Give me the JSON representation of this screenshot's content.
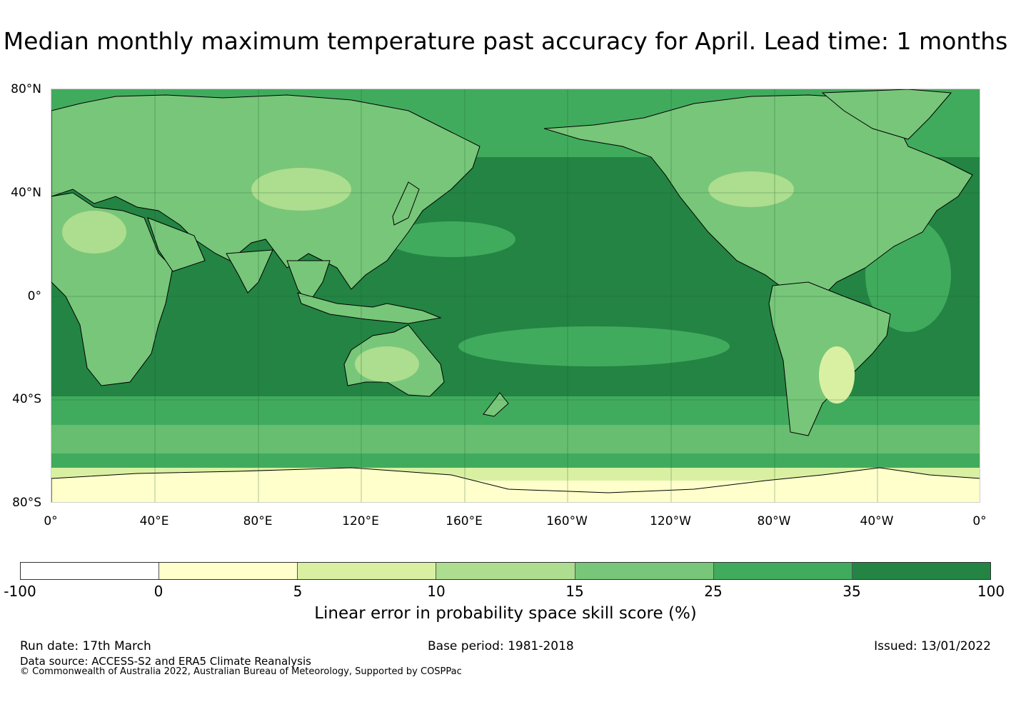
{
  "title": "Median monthly maximum temperature past accuracy for April. Lead time: 1 months",
  "map": {
    "lat_labels": [
      "80°N",
      "40°N",
      "0°",
      "40°S",
      "80°S"
    ],
    "lon_labels": [
      "0°",
      "40°E",
      "80°E",
      "120°E",
      "160°E",
      "160°W",
      "120°W",
      "80°W",
      "40°W",
      "0°"
    ],
    "ocean_color": "#238443",
    "land_color": "#78c679",
    "coast_color": "#000000"
  },
  "colorbar": {
    "ticks": [
      "-100",
      "0",
      "5",
      "10",
      "15",
      "25",
      "35",
      "100"
    ],
    "colors": [
      "#ffffff",
      "#ffffcc",
      "#d9f0a3",
      "#addd8e",
      "#78c679",
      "#41ab5d",
      "#238443"
    ],
    "label": "Linear error in probability space skill score (%)"
  },
  "footer": {
    "run_date": "Run date: 17th March",
    "base_period": "Base period: 1981-2018",
    "issued": "Issued: 13/01/2022",
    "data_source": "Data source: ACCESS-S2 and ERA5 Climate Reanalysis",
    "copyright": "© Commonwealth of Australia 2022, Australian Bureau of Meteorology, Supported by COSPPac"
  }
}
